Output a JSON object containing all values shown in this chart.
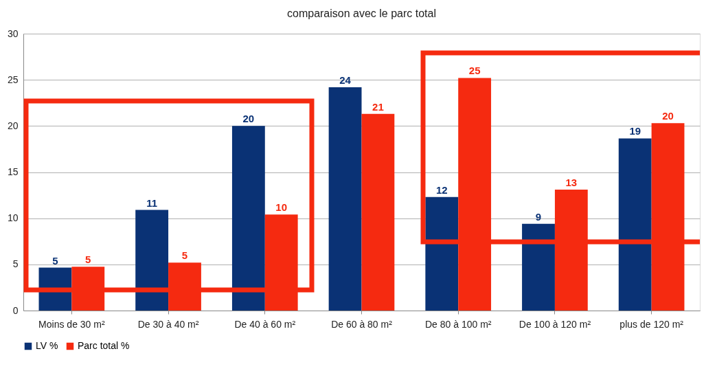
{
  "chart_data": {
    "type": "bar",
    "title": "comparaison avec le parc total",
    "categories": [
      "Moins de 30 m²",
      "De 30 à 40 m²",
      "De 40 à 60 m²",
      "De 60 à 80 m²",
      "De 80 à 100 m²",
      "De 100 à 120 m²",
      "plus de 120 m²"
    ],
    "series": [
      {
        "name": "LV %",
        "color": "#0a3275",
        "values": [
          4.65,
          10.9,
          20.0,
          24.2,
          12.3,
          9.4,
          18.65
        ],
        "value_labels": [
          "5",
          "11",
          "20",
          "24",
          "12",
          "9",
          "19"
        ]
      },
      {
        "name": "Parc total %",
        "color": "#f52a10",
        "values": [
          4.75,
          5.2,
          10.4,
          21.3,
          25.2,
          13.1,
          20.3
        ],
        "value_labels": [
          "5",
          "5",
          "10",
          "21",
          "25",
          "13",
          "20"
        ]
      }
    ],
    "ylim": [
      0,
      30
    ],
    "yticks": [
      0,
      5,
      10,
      15,
      20,
      25,
      30
    ],
    "grid": "y",
    "legend": "bottom"
  }
}
